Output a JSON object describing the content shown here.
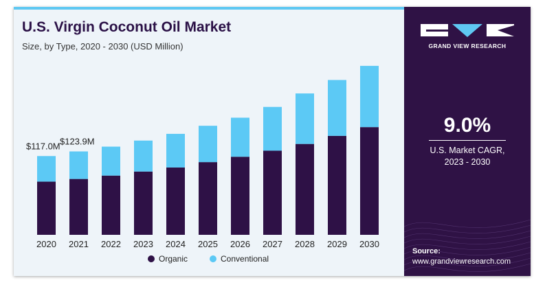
{
  "header": {
    "title": "U.S. Virgin Coconut Oil Market",
    "subtitle": "Size, by Type, 2020 - 2030 (USD Million)"
  },
  "sidebar": {
    "brand": "GRAND VIEW RESEARCH",
    "cagr_value": "9.0%",
    "cagr_label_line1": "U.S. Market CAGR,",
    "cagr_label_line2": "2023 - 2030",
    "source_title": "Source:",
    "source_url": "www.grandviewresearch.com"
  },
  "colors": {
    "organic": "#2e1146",
    "conventional": "#5cc9f5",
    "sidebar_bg": "#2f1245",
    "accent": "#5fc8f2"
  },
  "chart_data": {
    "type": "bar",
    "stacked": true,
    "title": "U.S. Virgin Coconut Oil Market",
    "subtitle": "Size, by Type, 2020 - 2030 (USD Million)",
    "categories": [
      "2020",
      "2021",
      "2022",
      "2023",
      "2024",
      "2025",
      "2026",
      "2027",
      "2028",
      "2029",
      "2030"
    ],
    "series": [
      {
        "name": "Organic",
        "values": [
          79,
          83,
          88,
          94,
          100,
          108,
          116,
          125,
          135,
          147,
          160
        ]
      },
      {
        "name": "Conventional",
        "values": [
          38,
          40.9,
          43,
          46,
          50,
          54,
          58,
          65,
          75,
          83,
          91
        ]
      }
    ],
    "annotations": [
      {
        "category": "2020",
        "text": "$117.0M"
      },
      {
        "category": "2021",
        "text": "$123.9M"
      }
    ],
    "ylim": [
      0,
      255
    ],
    "grid": false,
    "legend_position": "bottom-center"
  }
}
